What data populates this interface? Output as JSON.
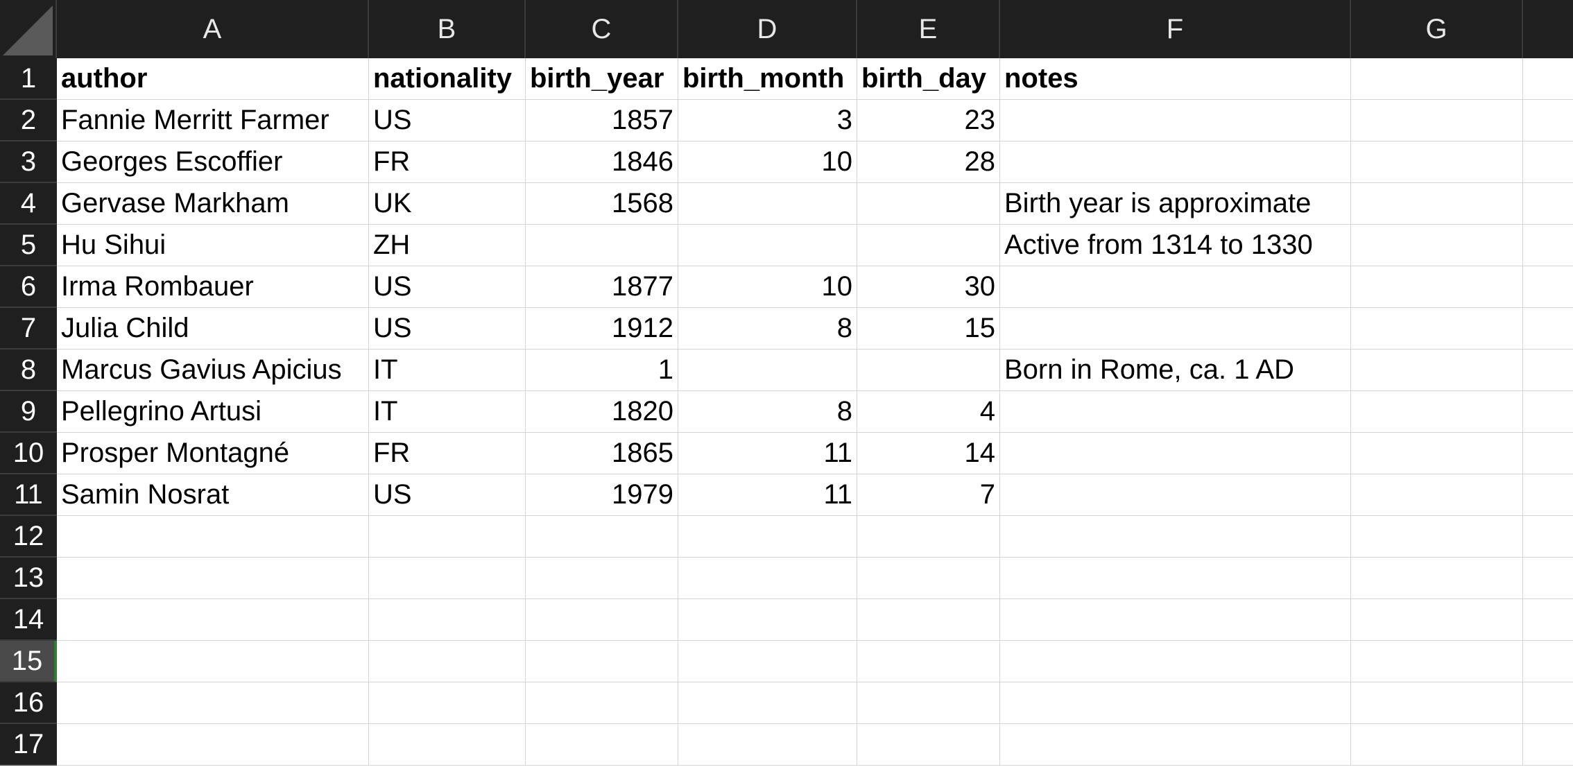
{
  "columns": [
    "A",
    "B",
    "C",
    "D",
    "E",
    "F",
    "G",
    ""
  ],
  "row_numbers": [
    "1",
    "2",
    "3",
    "4",
    "5",
    "6",
    "7",
    "8",
    "9",
    "10",
    "11",
    "12",
    "13",
    "14",
    "15",
    "16",
    "17"
  ],
  "selected_row": "15",
  "header": [
    "author",
    "nationality",
    "birth_year",
    "birth_month",
    "birth_day",
    "notes",
    "",
    ""
  ],
  "rows": [
    [
      "Fannie Merritt Farmer",
      "US",
      "1857",
      "3",
      "23",
      "",
      "",
      ""
    ],
    [
      "Georges Escoffier",
      "FR",
      "1846",
      "10",
      "28",
      "",
      "",
      ""
    ],
    [
      "Gervase Markham",
      "UK",
      "1568",
      "",
      "",
      "Birth year is approximate",
      "",
      ""
    ],
    [
      "Hu Sihui",
      "ZH",
      "",
      "",
      "",
      "Active from 1314 to 1330",
      "",
      ""
    ],
    [
      "Irma Rombauer",
      "US",
      "1877",
      "10",
      "30",
      "",
      "",
      ""
    ],
    [
      "Julia Child",
      "US",
      "1912",
      "8",
      "15",
      "",
      "",
      ""
    ],
    [
      "Marcus Gavius Apicius",
      "IT",
      "1",
      "",
      "",
      "Born in Rome, ca. 1 AD",
      "",
      ""
    ],
    [
      "Pellegrino Artusi",
      "IT",
      "1820",
      "8",
      "4",
      "",
      "",
      ""
    ],
    [
      "Prosper Montagné",
      "FR",
      "1865",
      "11",
      "14",
      "",
      "",
      ""
    ],
    [
      "Samin Nosrat",
      "US",
      "1979",
      "11",
      "7",
      "",
      "",
      ""
    ],
    [
      "",
      "",
      "",
      "",
      "",
      "",
      "",
      ""
    ],
    [
      "",
      "",
      "",
      "",
      "",
      "",
      "",
      ""
    ],
    [
      "",
      "",
      "",
      "",
      "",
      "",
      "",
      ""
    ],
    [
      "",
      "",
      "",
      "",
      "",
      "",
      "",
      ""
    ],
    [
      "",
      "",
      "",
      "",
      "",
      "",
      "",
      ""
    ],
    [
      "",
      "",
      "",
      "",
      "",
      "",
      "",
      ""
    ]
  ],
  "numeric_columns": [
    2,
    3,
    4
  ]
}
